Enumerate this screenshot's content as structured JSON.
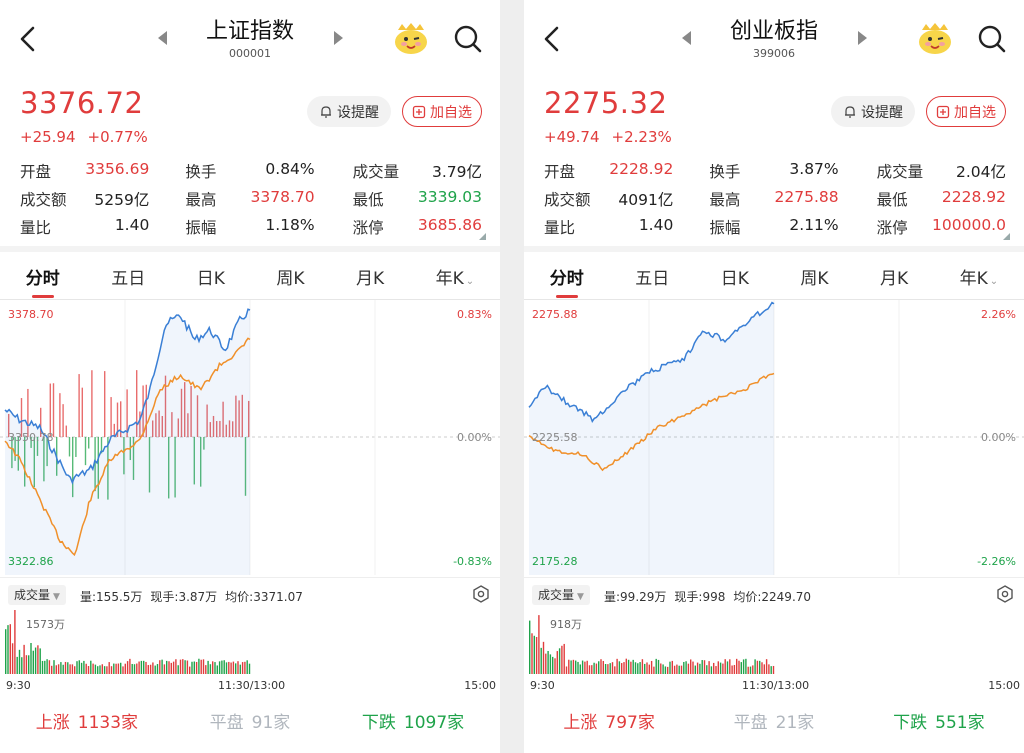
{
  "colors": {
    "up": "#e03c3c",
    "down": "#1fa34a",
    "flat": "#b0b6bd",
    "price_line": "#3a7fd5",
    "avg_line": "#f0902a"
  },
  "panels": [
    {
      "title": "上证指数",
      "code": "000001",
      "price": "3376.72",
      "change": "+25.94",
      "change_pct": "+0.77%",
      "btn_alert": "设提醒",
      "btn_add": "加自选",
      "stats": [
        [
          [
            "开盘",
            "3356.69",
            "red"
          ],
          [
            "换手",
            "0.84%",
            ""
          ],
          [
            "成交量",
            "3.79亿",
            ""
          ]
        ],
        [
          [
            "成交额",
            "5259亿",
            ""
          ],
          [
            "最高",
            "3378.70",
            "red"
          ],
          [
            "最低",
            "3339.03",
            "green"
          ]
        ],
        [
          [
            "量比",
            "1.40",
            ""
          ],
          [
            "振幅",
            "1.18%",
            ""
          ],
          [
            "涨停",
            "3685.86",
            "red"
          ]
        ]
      ],
      "tabs": [
        "分时",
        "五日",
        "日K",
        "周K",
        "月K",
        "年K"
      ],
      "chart": {
        "high_label": "3378.70",
        "mid_label": "3350.78",
        "low_label": "3322.86",
        "pct_high": "0.83%",
        "pct_mid": "0.00%",
        "pct_low": "-0.83%"
      },
      "volume": {
        "selector": "成交量",
        "qty": "量:155.5万",
        "now": "现手:3.87万",
        "avg": "均价:3371.07",
        "max_label": "1573万"
      },
      "time_labels": [
        "9:30",
        "11:30/13:00",
        "15:00"
      ],
      "breadth": {
        "up_label": "上涨",
        "up_count": "1133家",
        "flat_label": "平盘",
        "flat_count": "91家",
        "down_label": "下跌",
        "down_count": "1097家"
      }
    },
    {
      "title": "创业板指",
      "code": "399006",
      "price": "2275.32",
      "change": "+49.74",
      "change_pct": "+2.23%",
      "btn_alert": "设提醒",
      "btn_add": "加自选",
      "stats": [
        [
          [
            "开盘",
            "2228.92",
            "red"
          ],
          [
            "换手",
            "3.87%",
            ""
          ],
          [
            "成交量",
            "2.04亿",
            ""
          ]
        ],
        [
          [
            "成交额",
            "4091亿",
            ""
          ],
          [
            "最高",
            "2275.88",
            "red"
          ],
          [
            "最低",
            "2228.92",
            "red"
          ]
        ],
        [
          [
            "量比",
            "1.40",
            ""
          ],
          [
            "振幅",
            "2.11%",
            ""
          ],
          [
            "涨停",
            "100000.0",
            "red"
          ]
        ]
      ],
      "tabs": [
        "分时",
        "五日",
        "日K",
        "周K",
        "月K",
        "年K"
      ],
      "chart": {
        "high_label": "2275.88",
        "mid_label": "2225.58",
        "low_label": "2175.28",
        "pct_high": "2.26%",
        "pct_mid": "0.00%",
        "pct_low": "-2.26%"
      },
      "volume": {
        "selector": "成交量",
        "qty": "量:99.29万",
        "now": "现手:998",
        "avg": "均价:2249.70",
        "max_label": "918万"
      },
      "time_labels": [
        "9:30",
        "11:30/13:00",
        "15:00"
      ],
      "breadth": {
        "up_label": "上涨",
        "up_count": "797家",
        "flat_label": "平盘",
        "flat_count": "21家",
        "down_label": "下跌",
        "down_count": "551家"
      }
    }
  ]
}
